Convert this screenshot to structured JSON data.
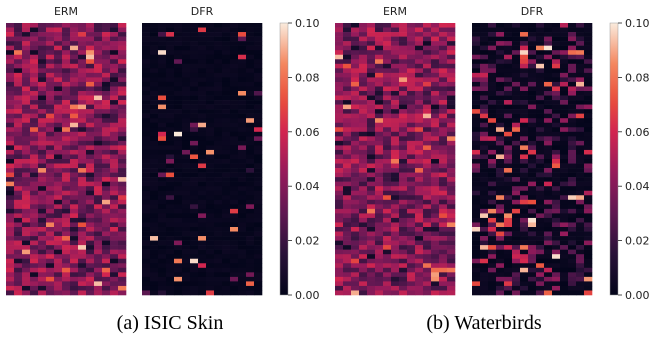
{
  "chart_data": [
    {
      "type": "heatmap",
      "title": "",
      "panels": [
        {
          "name": "ERM",
          "rows": 60,
          "cols": 15
        },
        {
          "name": "DFR",
          "rows": 60,
          "cols": 15
        }
      ],
      "colorbar": {
        "min": 0.0,
        "max": 0.1,
        "ticks": [
          "0.00",
          "0.02",
          "0.04",
          "0.06",
          "0.08",
          "0.10"
        ]
      },
      "caption": "(a) ISIC Skin"
    },
    {
      "type": "heatmap",
      "title": "",
      "panels": [
        {
          "name": "ERM",
          "rows": 60,
          "cols": 15
        },
        {
          "name": "DFR",
          "rows": 60,
          "cols": 15
        }
      ],
      "colorbar": {
        "min": 0.0,
        "max": 0.1,
        "ticks": [
          "0.00",
          "0.02",
          "0.04",
          "0.06",
          "0.08",
          "0.10"
        ]
      },
      "caption": "(b) Waterbirds"
    }
  ]
}
